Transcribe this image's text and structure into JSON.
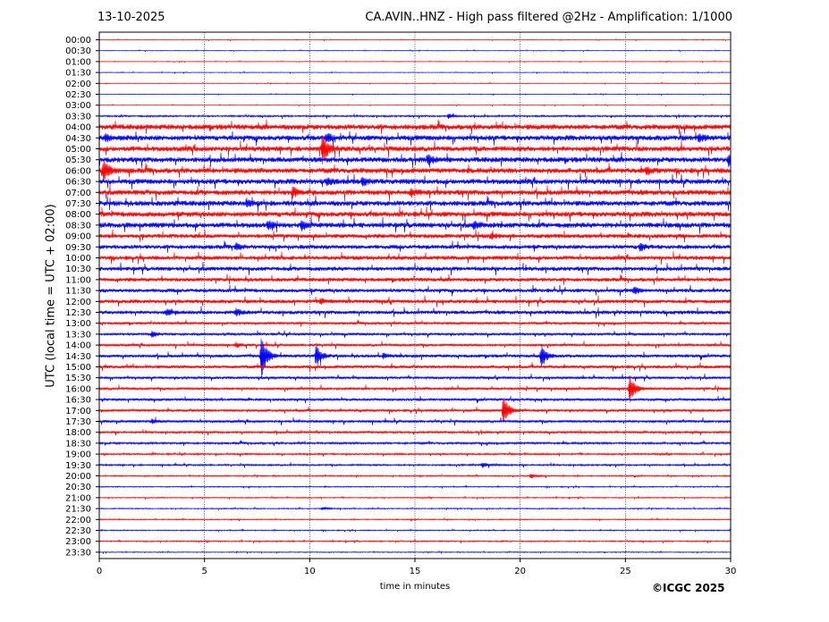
{
  "header": {
    "date": "13-10-2025",
    "title": "CA.AVIN..HNZ - High pass filtered @2Hz - Amplification: 1/1000"
  },
  "footer": {
    "copyright": "©ICGC 2025"
  },
  "chart_data": {
    "type": "line",
    "title": "CA.AVIN..HNZ - High pass filtered @2Hz - Amplification: 1/1000",
    "date": "13-10-2025",
    "xlabel": "time in minutes",
    "ylabel": "UTC (local time = UTC + 02:00)",
    "xlim": [
      0,
      30
    ],
    "x_ticks": [
      "0",
      "5",
      "10",
      "15",
      "20",
      "25",
      "30"
    ],
    "row_labels": [
      "00:00",
      "00:30",
      "01:00",
      "01:30",
      "02:00",
      "02:30",
      "03:00",
      "03:30",
      "04:00",
      "04:30",
      "05:00",
      "05:30",
      "06:00",
      "06:30",
      "07:00",
      "07:30",
      "08:00",
      "08:30",
      "09:00",
      "09:30",
      "10:00",
      "10:30",
      "11:00",
      "11:30",
      "12:00",
      "12:30",
      "13:00",
      "13:30",
      "14:00",
      "14:30",
      "15:00",
      "15:30",
      "16:00",
      "16:30",
      "17:00",
      "17:30",
      "18:00",
      "18:30",
      "19:00",
      "19:30",
      "20:00",
      "20:30",
      "21:00",
      "21:30",
      "22:00",
      "22:30",
      "23:00",
      "23:30"
    ],
    "trace_colors": [
      "#ff0000",
      "#0000ff"
    ],
    "grid": "vertical dotted at 5-minute intervals",
    "row_noise": [
      0.3,
      0.3,
      0.3,
      0.3,
      0.3,
      0.3,
      0.3,
      0.8,
      2.5,
      2.5,
      2.5,
      2.5,
      2.5,
      2.5,
      2.5,
      2.5,
      2.5,
      2.5,
      2,
      2,
      2,
      2,
      1.8,
      1.8,
      1.8,
      1.8,
      1.2,
      1.2,
      1.2,
      1.5,
      1.5,
      1.2,
      1.2,
      1.2,
      1.2,
      1.2,
      1,
      1,
      0.8,
      0.8,
      0.6,
      0.5,
      0.5,
      0.5,
      0.5,
      0.5,
      0.6,
      0.4
    ],
    "events": [
      {
        "row": "03:30",
        "minute": 16.6,
        "amplitude": 3
      },
      {
        "row": "04:30",
        "minute": 0.3,
        "amplitude": 4
      },
      {
        "row": "04:30",
        "minute": 10.8,
        "amplitude": 5
      },
      {
        "row": "04:30",
        "minute": 28.5,
        "amplitude": 4
      },
      {
        "row": "05:00",
        "minute": 10.6,
        "amplitude": 18
      },
      {
        "row": "05:30",
        "minute": 15.6,
        "amplitude": 6
      },
      {
        "row": "05:30",
        "minute": 29.9,
        "amplitude": 7
      },
      {
        "row": "06:00",
        "minute": 0.2,
        "amplitude": 14
      },
      {
        "row": "06:00",
        "minute": 26.0,
        "amplitude": 4
      },
      {
        "row": "06:30",
        "minute": 10.8,
        "amplitude": 4
      },
      {
        "row": "06:30",
        "minute": 12.5,
        "amplitude": 4
      },
      {
        "row": "07:00",
        "minute": 9.2,
        "amplitude": 6
      },
      {
        "row": "07:00",
        "minute": 14.8,
        "amplitude": 4
      },
      {
        "row": "07:30",
        "minute": 7.0,
        "amplitude": 4
      },
      {
        "row": "08:30",
        "minute": 8.0,
        "amplitude": 4
      },
      {
        "row": "08:30",
        "minute": 9.6,
        "amplitude": 6
      },
      {
        "row": "08:30",
        "minute": 17.8,
        "amplitude": 4
      },
      {
        "row": "09:00",
        "minute": 18.6,
        "amplitude": 3
      },
      {
        "row": "09:30",
        "minute": 6.5,
        "amplitude": 4
      },
      {
        "row": "09:30",
        "minute": 25.7,
        "amplitude": 5
      },
      {
        "row": "11:30",
        "minute": 25.4,
        "amplitude": 4
      },
      {
        "row": "12:00",
        "minute": 10.5,
        "amplitude": 3
      },
      {
        "row": "12:30",
        "minute": 3.2,
        "amplitude": 4
      },
      {
        "row": "12:30",
        "minute": 6.5,
        "amplitude": 4
      },
      {
        "row": "13:30",
        "minute": 2.5,
        "amplitude": 4
      },
      {
        "row": "14:00",
        "minute": 6.5,
        "amplitude": 3
      },
      {
        "row": "14:30",
        "minute": 7.7,
        "amplitude": 28
      },
      {
        "row": "14:30",
        "minute": 10.3,
        "amplitude": 14
      },
      {
        "row": "14:30",
        "minute": 13.5,
        "amplitude": 3
      },
      {
        "row": "14:30",
        "minute": 21.0,
        "amplitude": 14
      },
      {
        "row": "16:00",
        "minute": 25.2,
        "amplitude": 16
      },
      {
        "row": "17:00",
        "minute": 19.2,
        "amplitude": 20
      },
      {
        "row": "17:30",
        "minute": 2.5,
        "amplitude": 3
      },
      {
        "row": "19:30",
        "minute": 18.2,
        "amplitude": 3
      },
      {
        "row": "20:00",
        "minute": 20.5,
        "amplitude": 3
      },
      {
        "row": "21:30",
        "minute": 10.6,
        "amplitude": 2
      }
    ]
  }
}
